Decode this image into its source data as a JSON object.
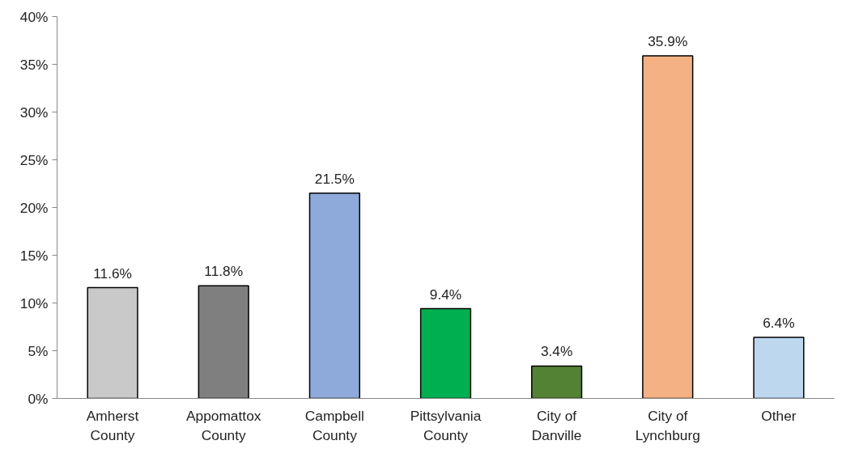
{
  "chart_data": {
    "type": "bar",
    "categories": [
      "Amherst County",
      "Appomattox County",
      "Campbell County",
      "Pittsylvania County",
      "City of Danville",
      "City of Lynchburg",
      "Other"
    ],
    "values": [
      11.6,
      11.8,
      21.5,
      9.4,
      3.4,
      35.9,
      6.4
    ],
    "colors": [
      "#c9c9c9",
      "#7f7f7f",
      "#8eaadb",
      "#00b050",
      "#548235",
      "#f4b183",
      "#bdd7ee"
    ],
    "value_labels": [
      "11.6%",
      "11.8%",
      "21.5%",
      "9.4%",
      "3.4%",
      "35.9%",
      "6.4%"
    ],
    "ylim": [
      0,
      40
    ],
    "yticks": [
      {
        "value": 0,
        "label": "0%"
      },
      {
        "value": 5,
        "label": "5%"
      },
      {
        "value": 10,
        "label": "10%"
      },
      {
        "value": 15,
        "label": "15%"
      },
      {
        "value": 20,
        "label": "20%"
      },
      {
        "value": 25,
        "label": "25%"
      },
      {
        "value": 30,
        "label": "30%"
      },
      {
        "value": 35,
        "label": "35%"
      },
      {
        "value": 40,
        "label": "40%"
      }
    ],
    "grid": false
  }
}
